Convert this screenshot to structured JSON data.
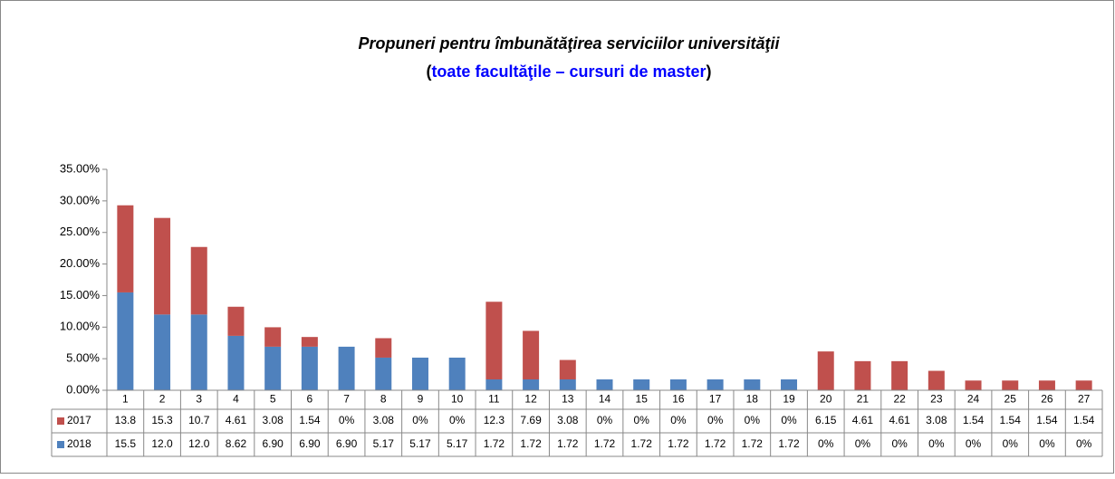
{
  "chart_data": {
    "type": "stacked-bar",
    "title": "Propuneri pentru îmbunătăţirea  serviciilor universităţii",
    "subtitle": [
      "(",
      "toate facultăţile – cursuri de master",
      ")"
    ],
    "categories": [
      "1",
      "2",
      "3",
      "4",
      "5",
      "6",
      "7",
      "8",
      "9",
      "10",
      "11",
      "12",
      "13",
      "14",
      "15",
      "16",
      "17",
      "18",
      "19",
      "20",
      "21",
      "22",
      "23",
      "24",
      "25",
      "26",
      "27"
    ],
    "series": [
      {
        "name": "2017",
        "color": "#c0504d",
        "values": [
          13.8,
          15.3,
          10.7,
          4.61,
          3.08,
          1.54,
          0,
          3.08,
          0,
          0,
          12.3,
          7.69,
          3.08,
          0,
          0,
          0,
          0,
          0,
          0,
          6.15,
          4.61,
          4.61,
          3.08,
          1.54,
          1.54,
          1.54,
          1.54
        ],
        "value_labels": [
          "13.8",
          "15.3",
          "10.7",
          "4.61",
          "3.08",
          "1.54",
          "0%",
          "3.08",
          "0%",
          "0%",
          "12.3",
          "7.69",
          "3.08",
          "0%",
          "0%",
          "0%",
          "0%",
          "0%",
          "0%",
          "6.15",
          "4.61",
          "4.61",
          "3.08",
          "1.54",
          "1.54",
          "1.54",
          "1.54"
        ]
      },
      {
        "name": "2018",
        "color": "#4f81bd",
        "values": [
          15.5,
          12.0,
          12.0,
          8.62,
          6.9,
          6.9,
          6.9,
          5.17,
          5.17,
          5.17,
          1.72,
          1.72,
          1.72,
          1.72,
          1.72,
          1.72,
          1.72,
          1.72,
          1.72,
          0,
          0,
          0,
          0,
          0,
          0,
          0,
          0
        ],
        "value_labels": [
          "15.5",
          "12.0",
          "12.0",
          "8.62",
          "6.90",
          "6.90",
          "6.90",
          "5.17",
          "5.17",
          "5.17",
          "1.72",
          "1.72",
          "1.72",
          "1.72",
          "1.72",
          "1.72",
          "1.72",
          "1.72",
          "1.72",
          "0%",
          "0%",
          "0%",
          "0%",
          "0%",
          "0%",
          "0%",
          "0%"
        ]
      }
    ],
    "stack_order": [
      "2018",
      "2017"
    ],
    "ylim": [
      0,
      35
    ],
    "yticks": [
      {
        "value": 0,
        "label": "0.00%"
      },
      {
        "value": 5,
        "label": "5.00%"
      },
      {
        "value": 10,
        "label": "10.00%"
      },
      {
        "value": 15,
        "label": "15.00%"
      },
      {
        "value": 20,
        "label": "20.00%"
      },
      {
        "value": 25,
        "label": "25.00%"
      },
      {
        "value": 30,
        "label": "30.00%"
      },
      {
        "value": 35,
        "label": "35.00%"
      }
    ],
    "grid": false
  }
}
